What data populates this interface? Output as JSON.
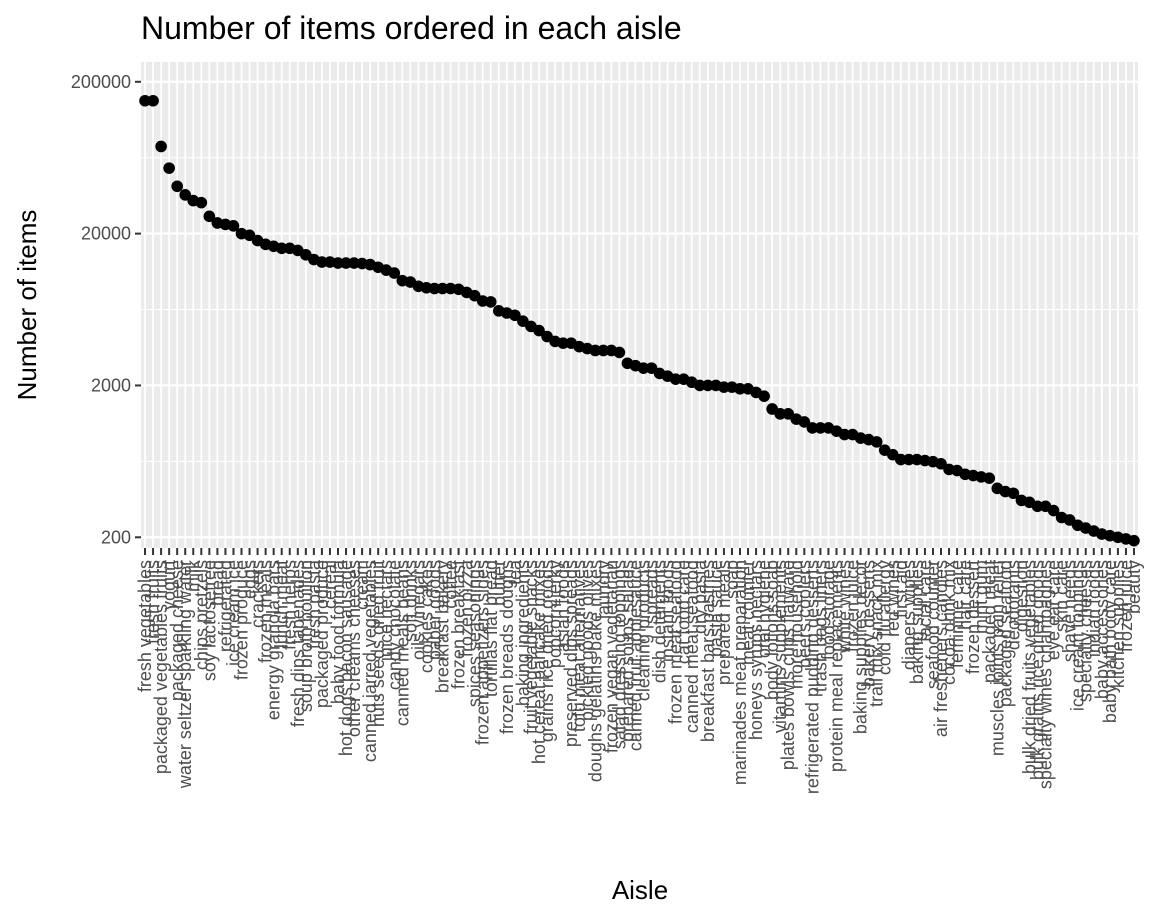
{
  "chart_data": {
    "type": "scatter",
    "title": "Number of items ordered in each aisle",
    "xlabel": "Aisle",
    "ylabel": "Number of items",
    "y_scale": "log10",
    "ylim": [
      170,
      270000
    ],
    "y_ticks": [
      200,
      2000,
      20000,
      200000
    ],
    "y_tick_labels": [
      "200",
      "2000",
      "20000",
      "200000"
    ],
    "grid": true,
    "legend": "none",
    "point_color": "#000000",
    "panel_background": "#ebebeb",
    "categories": [
      "fresh vegetables",
      "fresh fruits",
      "packaged vegetables fruits",
      "yogurt",
      "packaged cheese",
      "water seltzer sparkling water",
      "milk",
      "chips pretzels",
      "soy lactosefree",
      "bread",
      "refrigerated",
      "ice cream ice",
      "frozen produce",
      "eggs",
      "crackers",
      "frozen meals",
      "energy granola bars",
      "lunch meat",
      "fresh herbs",
      "fresh dips tapenades",
      "soup broth bouillon",
      "fresh pasta",
      "packaged produce",
      "cereal",
      "baby food formula",
      "hot dogs bacon sausage",
      "other creams cheeses",
      "cream",
      "canned jarred vegetables",
      "nuts seeds dried fruit",
      "juice nectars",
      "candy chocolate",
      "canned meals beans",
      "soft drinks",
      "oils vinegars",
      "cookies cakes",
      "paper goods",
      "breakfast bakery",
      "coffee",
      "frozen breakfast",
      "frozen pizza",
      "spices seasonings",
      "frozen appetizers sides",
      "tortillas flat bread",
      "butter",
      "frozen breads doughs",
      "tea",
      "baking ingredients",
      "fruit vegetable snacks",
      "hot cereal pancake mixes",
      "grains rice dried goods",
      "popcorn jerky",
      "asian foods",
      "preserved dips spreads",
      "tofu meat alternatives",
      "pickled goods olives",
      "doughs gelatins bake mixes",
      "laundry",
      "frozen vegan vegetarian",
      "salad dressing toppings",
      "prepared soups salads",
      "canned fruit applesauce",
      "cleaning products",
      "spreads",
      "dish detergents",
      "instant foods",
      "frozen meat seafood",
      "cat food care",
      "canned meat seafood",
      "dry pasta",
      "breakfast bars pastries",
      "pasta sauce",
      "prepared meals",
      "soap",
      "marinades meat preparation",
      "meat counter",
      "honeys syrups nectars",
      "oral hygiene",
      "body lotions soap",
      "vitamins supplements",
      "plates bowls cups flatware",
      "more household",
      "beers coolers",
      "refrigerated pudding desserts",
      "trash bags liners",
      "food storage",
      "protein meal replacements",
      "white wines",
      "frozen juice",
      "baking supplies decor",
      "bakery desserts",
      "trail mix snack mix",
      "cold flu allergy",
      "red wines",
      "first aid",
      "diapers wipes",
      "baking supplies",
      "facial care",
      "seafood counter",
      "air fresheners candles",
      "cocoa drink mix",
      "feminine care",
      "hair care",
      "frozen dessert",
      "mint gum",
      "packaged meat",
      "muscles joints pain relief",
      "packaged seafood",
      "deodorants",
      "digestion",
      "bulk dried fruits vegetables",
      "bulk grains rice dried goods",
      "specialty wines champagnes",
      "eye ear care",
      "skin care",
      "shave needs",
      "ice cream toppings",
      "specialty cheeses",
      "indian foods",
      "baby accessories",
      "baby bath body care",
      "kitchen supplies",
      "frozen juice",
      "beauty"
    ],
    "x_tick_labels": [
      "fresh vegetables",
      "fresh fruits",
      "packaged vegetables fruits",
      "yogurt",
      "packaged cheese",
      "water seltzer sparkling water",
      "milk",
      "chips pretzels",
      "soy lactosefree",
      "bread",
      "refrigerated",
      "ice cream ice",
      "frozen produce",
      "eggs",
      "crackers",
      "frozen meals",
      "energy granola bars",
      "lunch meat",
      "fresh herbs",
      "fresh dips tapenades",
      "soup broth bouillon",
      "fresh pasta",
      "packaged produce",
      "cereal",
      "baby food formula",
      "hot dogs bacon sausage",
      "other creams cheeses",
      "cream",
      "canned jarred vegetables",
      "nuts seeds dried fruit",
      "juice nectars",
      "candy chocolate",
      "canned meals beans",
      "soft drinks",
      "oils vinegars",
      "cookies cakes",
      "paper goods",
      "breakfast bakery",
      "coffee",
      "frozen breakfast",
      "frozen pizza",
      "spices seasonings",
      "frozen appetizers sides",
      "tortillas flat bread",
      "butter",
      "frozen breads doughs",
      "tea",
      "baking ingredients",
      "fruit vegetable snacks",
      "hot cereal pancake mixes",
      "grains rice dried goods",
      "popcorn jerky",
      "asian foods",
      "preserved dips spreads",
      "tofu meat alternatives",
      "pickled goods olives",
      "doughs gelatins bake mixes",
      "laundry",
      "frozen vegan vegetarian",
      "salad dressing toppings",
      "prepared soups salads",
      "canned fruit applesauce",
      "cleaning products",
      "spreads",
      "dish detergents",
      "instant foods",
      "frozen meat seafood",
      "cat food care",
      "canned meat seafood",
      "dry pasta",
      "breakfast bars pastries",
      "pasta sauce",
      "prepared meals",
      "soap",
      "marinades meat preparation",
      "meat counter",
      "honeys syrups nectars",
      "oral hygiene",
      "body lotions soap",
      "vitamins supplements",
      "plates bowls cups flatware",
      "more household",
      "beers coolers",
      "refrigerated pudding desserts",
      "trash bags liners",
      "food storage",
      "protein meal replacements",
      "white wines",
      "frozen juice",
      "baking supplies decor",
      "bakery desserts",
      "trail mix snack mix",
      "cold flu allergy",
      "red wines",
      "first aid",
      "diapers wipes",
      "baking supplies",
      "facial care",
      "seafood counter",
      "air fresheners candles",
      "cocoa drink mix",
      "feminine care",
      "hair care",
      "frozen dessert",
      "mint gum",
      "packaged meat",
      "muscles joints pain relief",
      "packaged seafood",
      "deodorants",
      "digestion",
      "bulk dried fruits vegetables",
      "bulk grains rice dried goods",
      "specialty wines champagnes",
      "eye ear care",
      "skin care",
      "shave needs",
      "ice cream toppings",
      "specialty cheeses",
      "indian foods",
      "baby accessories",
      "baby bath body care",
      "kitchen supplies",
      "frozen juice",
      "beauty"
    ],
    "values": [
      150000,
      150000,
      75000,
      54000,
      41000,
      36000,
      33000,
      32000,
      26000,
      23500,
      23000,
      22500,
      20000,
      19500,
      18000,
      17000,
      16500,
      16000,
      16000,
      15500,
      14500,
      13500,
      13000,
      13000,
      12800,
      12800,
      12800,
      12700,
      12500,
      12000,
      11500,
      11000,
      9800,
      9600,
      9000,
      8800,
      8700,
      8700,
      8700,
      8600,
      8200,
      7800,
      7200,
      7100,
      6200,
      6000,
      5800,
      5300,
      4900,
      4600,
      4200,
      3900,
      3800,
      3800,
      3600,
      3500,
      3400,
      3400,
      3400,
      3300,
      2800,
      2700,
      2600,
      2600,
      2400,
      2300,
      2200,
      2200,
      2100,
      2000,
      2000,
      2000,
      1950,
      1950,
      1900,
      1900,
      1800,
      1700,
      1400,
      1300,
      1300,
      1200,
      1150,
      1050,
      1050,
      1050,
      1000,
      950,
      950,
      900,
      880,
      850,
      750,
      700,
      650,
      650,
      650,
      640,
      630,
      610,
      560,
      550,
      520,
      510,
      500,
      490,
      420,
      400,
      390,
      350,
      340,
      320,
      320,
      300,
      270,
      260,
      240,
      230,
      220,
      210,
      205,
      200,
      195,
      190
    ]
  }
}
